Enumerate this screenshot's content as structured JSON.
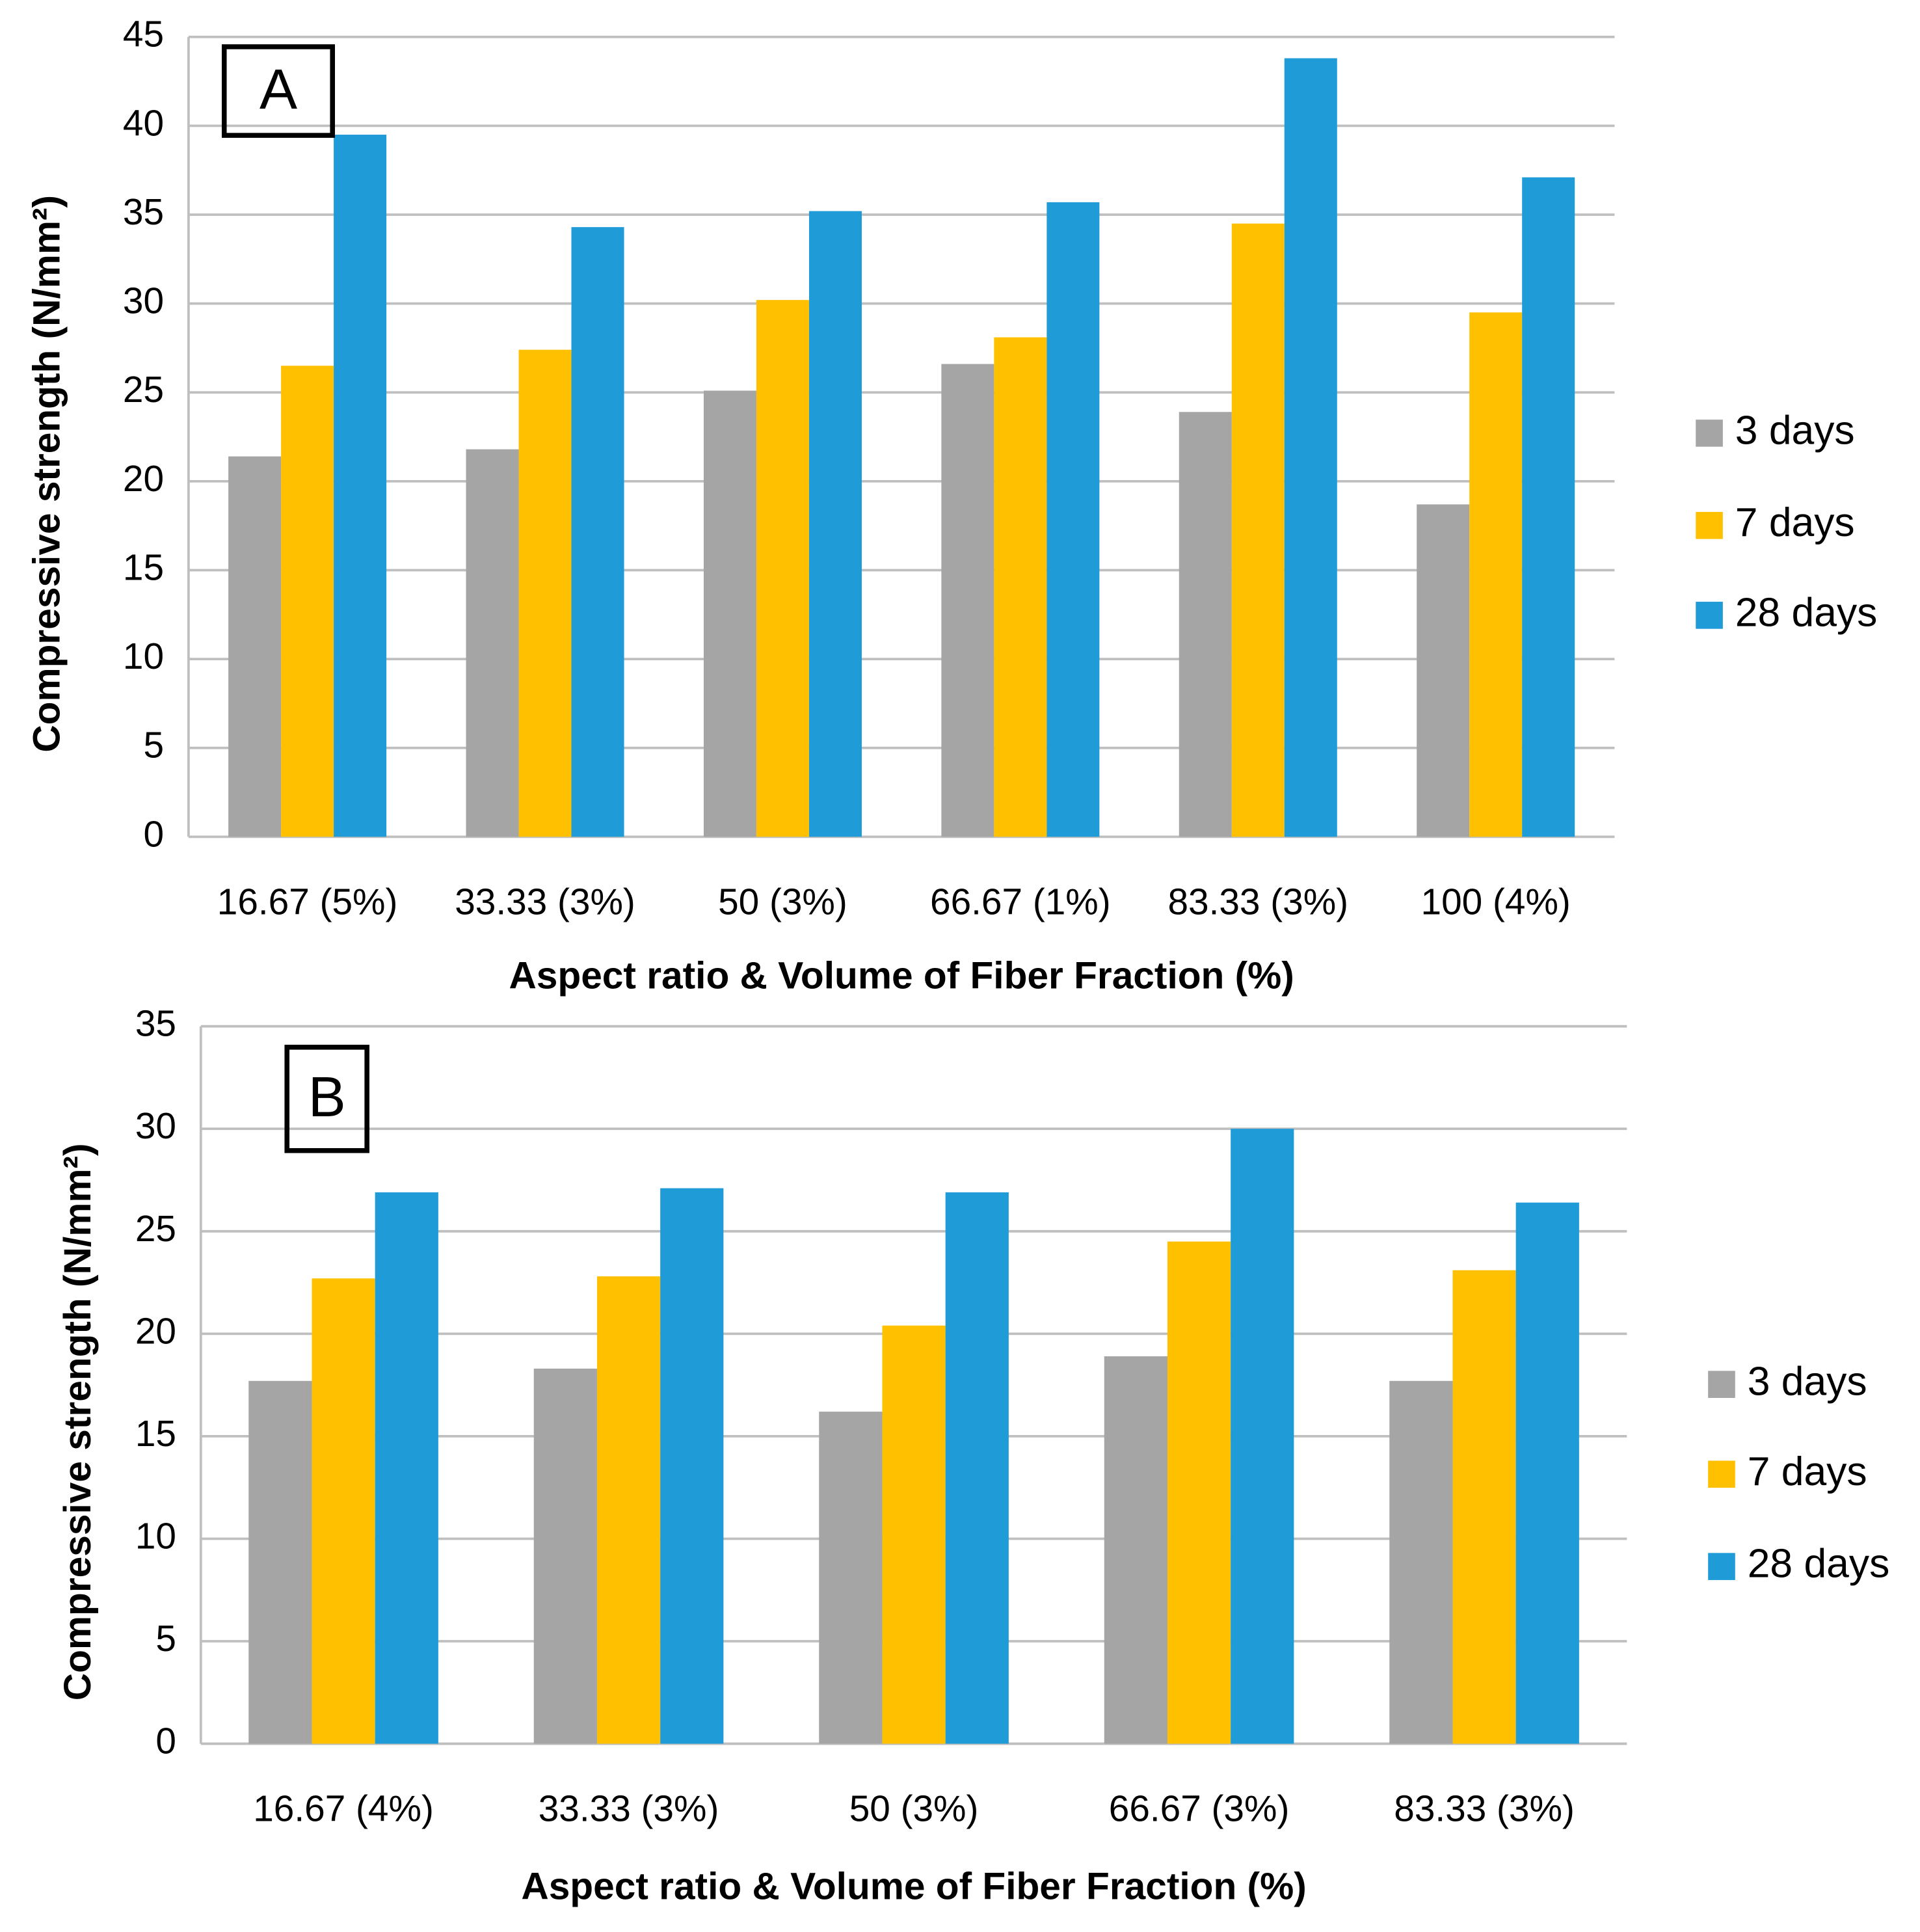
{
  "chart_data": [
    {
      "type": "bar",
      "panel_label": "A",
      "y_label": "Compressive strength (N/mm²)",
      "x_label": "Aspect ratio & Volume of Fiber Fraction (%)",
      "categories": [
        "16.67 (5%)",
        "33.33 (3%)",
        "50 (3%)",
        "66.67 (1%)",
        "83.33 (3%)",
        "100 (4%)"
      ],
      "series": [
        {
          "name": "3 days",
          "color": "#a5a5a5",
          "values": [
            21.4,
            21.8,
            25.1,
            26.6,
            23.9,
            18.7
          ]
        },
        {
          "name": "7 days",
          "color": "#ffc000",
          "values": [
            26.5,
            27.4,
            30.2,
            28.1,
            34.5,
            29.5
          ]
        },
        {
          "name": "28 days",
          "color": "#1f9bd7",
          "values": [
            39.5,
            34.3,
            35.2,
            35.7,
            43.8,
            37.1
          ]
        }
      ],
      "ylim": [
        0,
        45
      ],
      "yticks": [
        0,
        5,
        10,
        15,
        20,
        25,
        30,
        35,
        40,
        45
      ],
      "grid": true,
      "legend": "right"
    },
    {
      "type": "bar",
      "panel_label": "B",
      "y_label": "Compressive strength (N/mm²)",
      "x_label": "Aspect ratio & Volume of Fiber Fraction (%)",
      "categories": [
        "16.67 (4%)",
        "33.33 (3%)",
        "50 (3%)",
        "66.67 (3%)",
        "83.33 (3%)"
      ],
      "series": [
        {
          "name": "3 days",
          "color": "#a5a5a5",
          "values": [
            17.7,
            18.3,
            16.2,
            18.9,
            17.7
          ]
        },
        {
          "name": "7 days",
          "color": "#ffc000",
          "values": [
            22.7,
            22.8,
            20.4,
            24.5,
            23.1
          ]
        },
        {
          "name": "28 days",
          "color": "#1f9bd7",
          "values": [
            26.9,
            27.1,
            26.9,
            30.0,
            26.4
          ]
        }
      ],
      "ylim": [
        0,
        35
      ],
      "yticks": [
        0,
        5,
        10,
        15,
        20,
        25,
        30,
        35
      ],
      "grid": true,
      "legend": "right"
    }
  ]
}
